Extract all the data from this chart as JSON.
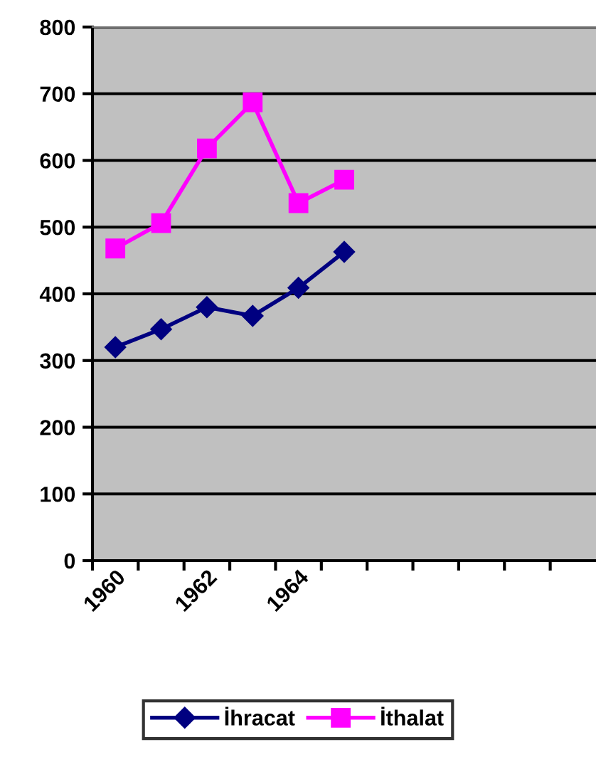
{
  "chart_data": {
    "type": "line",
    "categories": [
      "1960",
      null,
      "1962",
      null,
      "1964",
      null,
      null,
      null,
      null,
      null,
      null
    ],
    "series": [
      {
        "name": "İhracat",
        "color": "#000080",
        "marker": "diamond",
        "values": [
          320,
          347,
          380,
          367,
          409,
          463,
          null,
          null,
          null,
          null,
          null
        ]
      },
      {
        "name": "İthalat",
        "color": "#ff00ff",
        "marker": "square",
        "values": [
          468,
          506,
          618,
          687,
          536,
          571,
          null,
          null,
          null,
          null,
          null
        ]
      }
    ],
    "ylim": [
      0,
      800
    ],
    "yticks": [
      0,
      100,
      200,
      300,
      400,
      500,
      600,
      700,
      800
    ],
    "grid": "y",
    "legend": "bottom"
  }
}
